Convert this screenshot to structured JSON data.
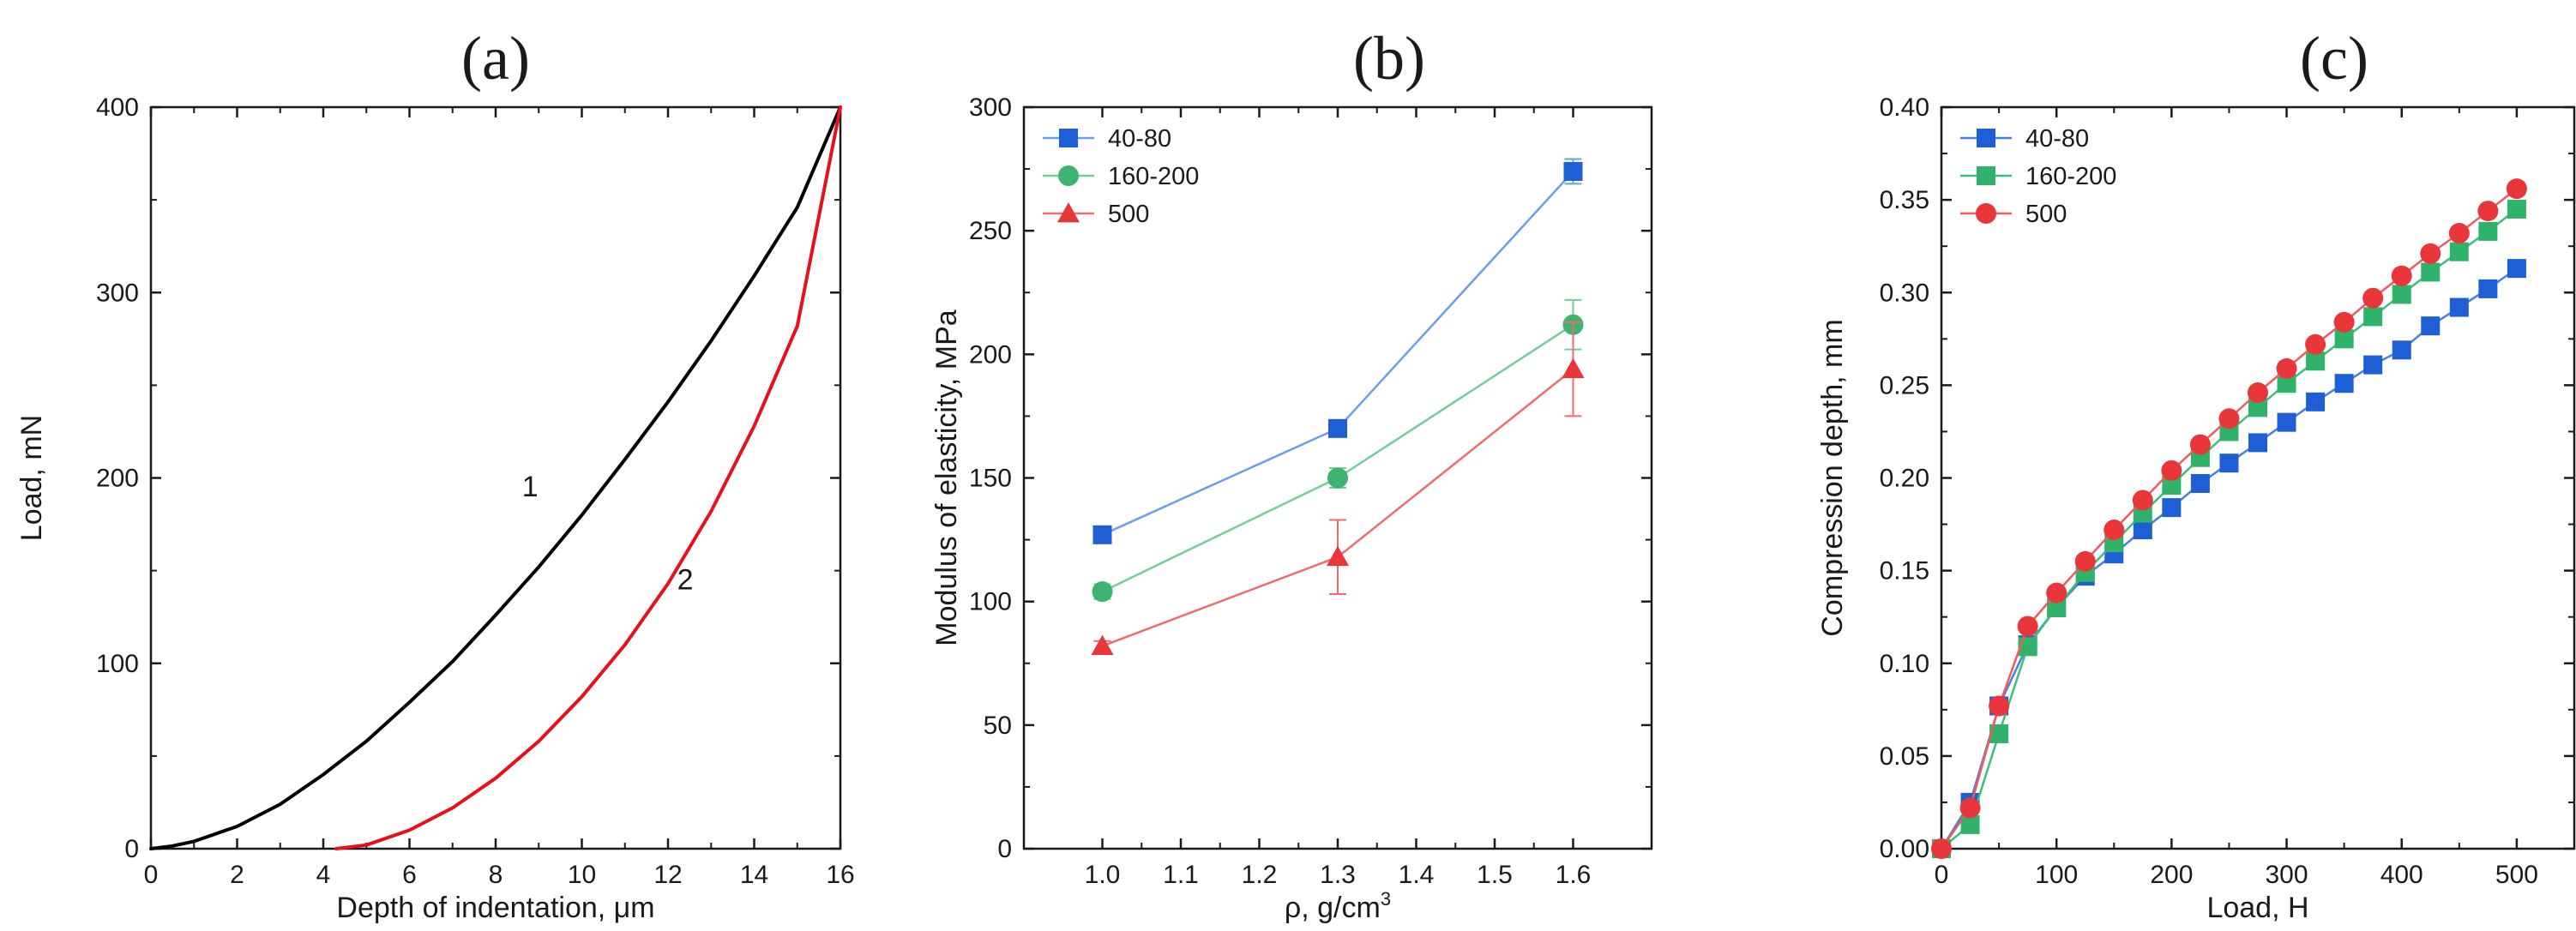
{
  "figure": {
    "background": "#ffffff"
  },
  "chart_data": [
    {
      "id": "a",
      "panel_label": "(a)",
      "type": "line",
      "xlabel": "Depth of indentation, μm",
      "ylabel": "Load, mN",
      "xlim": [
        0,
        16
      ],
      "ylim": [
        0,
        400
      ],
      "xticks": [
        0,
        2,
        4,
        6,
        8,
        10,
        12,
        14,
        16
      ],
      "yticks": [
        0,
        100,
        200,
        300,
        400
      ],
      "series": [
        {
          "name": "1",
          "color": "#000000",
          "x": [
            0,
            0.5,
            1,
            2,
            3,
            4,
            5,
            6,
            7,
            8,
            9,
            10,
            11,
            12,
            13,
            14,
            15,
            16
          ],
          "y": [
            0,
            1.5,
            4,
            12,
            24,
            40,
            58,
            79,
            101,
            126,
            152,
            180,
            210,
            241,
            274,
            309,
            346,
            400
          ]
        },
        {
          "name": "2",
          "color": "#e8101a",
          "x": [
            4.3,
            5,
            6,
            7,
            8,
            9,
            10,
            11,
            12,
            13,
            14,
            15,
            16
          ],
          "y": [
            0,
            2,
            10,
            22,
            38,
            58,
            82,
            110,
            143,
            182,
            228,
            282,
            400
          ]
        }
      ],
      "annotations": [
        {
          "text": "1",
          "x": 8.8,
          "y": 190
        },
        {
          "text": "2",
          "x": 12.4,
          "y": 140
        }
      ]
    },
    {
      "id": "b",
      "panel_label": "(b)",
      "type": "line",
      "xlabel": "ρ, g/cm",
      "xlabel_superscript": "3",
      "ylabel": "Modulus of elasticity, MPa",
      "xlim": [
        0.9,
        1.7
      ],
      "ylim": [
        0,
        300
      ],
      "xticks": [
        1.0,
        1.1,
        1.2,
        1.3,
        1.4,
        1.5,
        1.6
      ],
      "xtick_labels": [
        "1.0",
        "1.1",
        "1.2",
        "1.3",
        "1.4",
        "1.5",
        "1.6"
      ],
      "yticks": [
        0,
        50,
        100,
        150,
        200,
        250,
        300
      ],
      "legend_position": "top-left",
      "series": [
        {
          "name": "40-80",
          "marker": "square",
          "color": "#1f5fd6",
          "line_color": "#6a9ee8",
          "x": [
            1.0,
            1.3,
            1.6
          ],
          "y": [
            127,
            170,
            274
          ],
          "err": [
            3,
            2,
            5
          ]
        },
        {
          "name": "160-200",
          "marker": "circle",
          "color": "#3cb371",
          "line_color": "#6fcf97",
          "x": [
            1.0,
            1.3,
            1.6
          ],
          "y": [
            104,
            150,
            212
          ],
          "err": [
            3,
            4,
            10
          ]
        },
        {
          "name": "500",
          "marker": "triangle",
          "color": "#e8363a",
          "line_color": "#ee6b6e",
          "x": [
            1.0,
            1.3,
            1.6
          ],
          "y": [
            82,
            118,
            194
          ],
          "err": [
            2,
            15,
            19
          ]
        }
      ]
    },
    {
      "id": "c",
      "panel_label": "(c)",
      "type": "line",
      "xlabel": "Load, H",
      "ylabel": "Compression depth, mm",
      "xlim": [
        0,
        550
      ],
      "ylim": [
        0,
        0.4
      ],
      "xticks": [
        0,
        100,
        200,
        300,
        400,
        500
      ],
      "yticks": [
        0,
        0.05,
        0.1,
        0.15,
        0.2,
        0.25,
        0.3,
        0.35,
        0.4
      ],
      "ytick_labels": [
        "0.00",
        "0.05",
        "0.10",
        "0.15",
        "0.20",
        "0.25",
        "0.30",
        "0.35",
        "0.40"
      ],
      "legend_position": "top-left",
      "series": [
        {
          "name": "40-80",
          "marker": "square",
          "color": "#1f5fd6",
          "line_color": "#4a7fe0",
          "x": [
            0,
            25,
            50,
            75,
            100,
            125,
            150,
            175,
            200,
            225,
            250,
            275,
            300,
            325,
            350,
            375,
            400,
            425,
            450,
            475,
            500
          ],
          "y": [
            0,
            0.025,
            0.077,
            0.11,
            0.13,
            0.147,
            0.159,
            0.172,
            0.184,
            0.197,
            0.208,
            0.219,
            0.23,
            0.241,
            0.251,
            0.261,
            0.269,
            0.282,
            0.292,
            0.302,
            0.313
          ]
        },
        {
          "name": "160-200",
          "marker": "square",
          "color": "#2fb36a",
          "line_color": "#3cbf7a",
          "x": [
            0,
            25,
            50,
            75,
            100,
            125,
            150,
            175,
            200,
            225,
            250,
            275,
            300,
            325,
            350,
            375,
            400,
            425,
            450,
            475,
            500
          ],
          "y": [
            0,
            0.013,
            0.062,
            0.109,
            0.13,
            0.149,
            0.165,
            0.181,
            0.196,
            0.211,
            0.225,
            0.238,
            0.251,
            0.263,
            0.275,
            0.287,
            0.299,
            0.311,
            0.322,
            0.333,
            0.345
          ]
        },
        {
          "name": "500",
          "marker": "circle",
          "color": "#e8363a",
          "line_color": "#ee5a5d",
          "x": [
            0,
            25,
            50,
            75,
            100,
            125,
            150,
            175,
            200,
            225,
            250,
            275,
            300,
            325,
            350,
            375,
            400,
            425,
            450,
            475,
            500
          ],
          "y": [
            0,
            0.022,
            0.077,
            0.12,
            0.138,
            0.155,
            0.172,
            0.188,
            0.204,
            0.218,
            0.232,
            0.246,
            0.259,
            0.272,
            0.284,
            0.297,
            0.309,
            0.321,
            0.332,
            0.344,
            0.356
          ]
        }
      ]
    }
  ]
}
